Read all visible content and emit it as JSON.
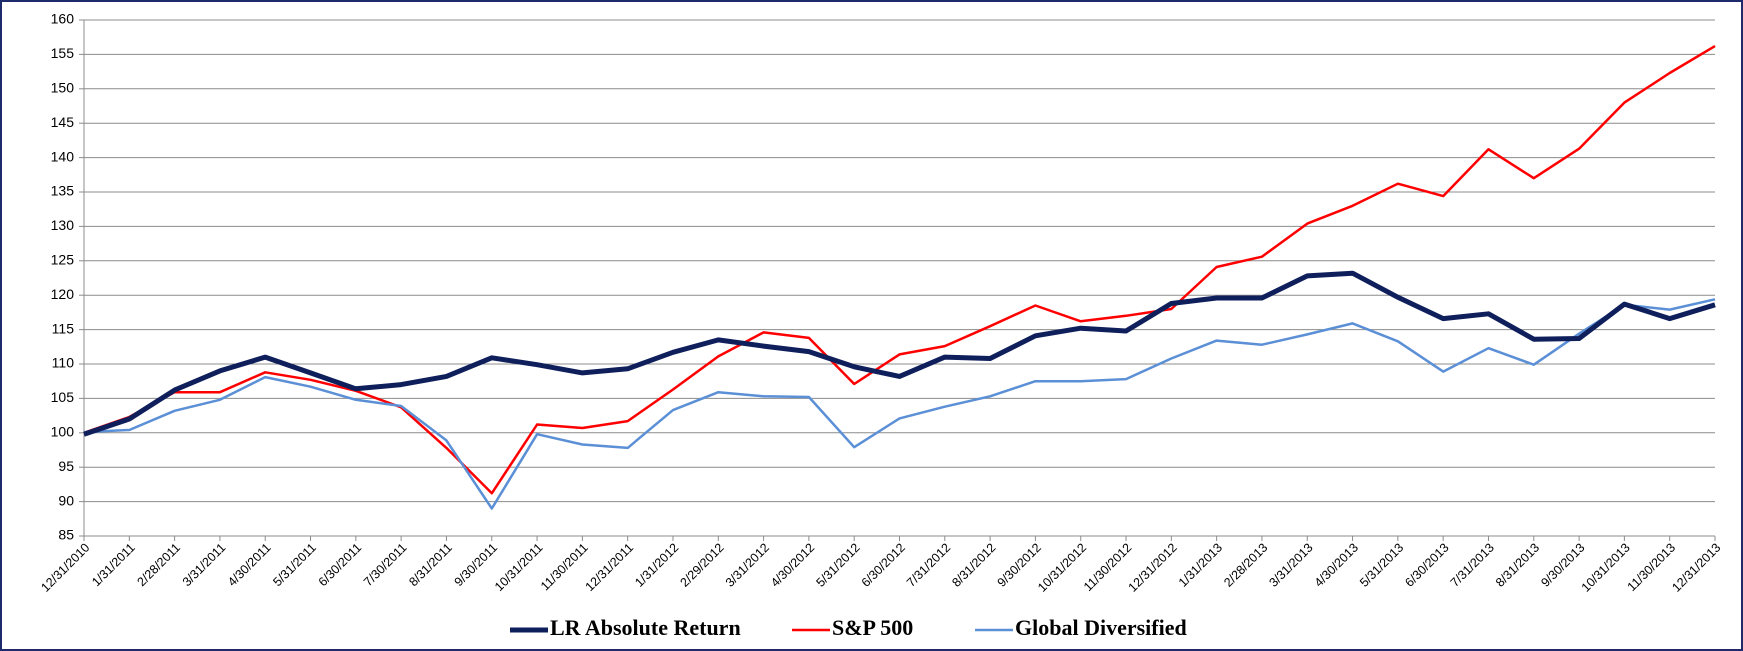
{
  "chart_data": {
    "type": "line",
    "categories": [
      "12/31/2010",
      "1/31/2011",
      "2/28/2011",
      "3/31/2011",
      "4/30/2011",
      "5/31/2011",
      "6/30/2011",
      "7/30/2011",
      "8/31/2011",
      "9/30/2011",
      "10/31/2011",
      "11/30/2011",
      "12/31/2011",
      "1/31/2012",
      "2/29/2012",
      "3/31/2012",
      "4/30/2012",
      "5/31/2012",
      "6/30/2012",
      "7/31/2012",
      "8/31/2012",
      "9/30/2012",
      "10/31/2012",
      "11/30/2012",
      "12/31/2012",
      "1/31/2013",
      "2/28/2013",
      "3/31/2013",
      "4/30/2013",
      "5/31/2013",
      "6/30/2013",
      "7/31/2013",
      "8/31/2013",
      "9/30/2013",
      "10/31/2013",
      "11/30/2013",
      "12/31/2013"
    ],
    "series": [
      {
        "name": "LR Absolute Return",
        "color": "#0f1f5c",
        "values": [
          99.8,
          102,
          106.2,
          109,
          111,
          108.7,
          106.4,
          107,
          108.2,
          110.9,
          109.9,
          108.7,
          109.3,
          111.7,
          113.5,
          112.6,
          111.8,
          109.6,
          108.2,
          111,
          110.8,
          114.1,
          115.2,
          114.8,
          118.8,
          119.6,
          119.6,
          122.8,
          123.2,
          119.7,
          116.6,
          117.3,
          113.6,
          113.7,
          118.7,
          116.6,
          118.6
        ]
      },
      {
        "name": "S&P 500",
        "color": "#ff0000",
        "values": [
          100,
          102.3,
          105.9,
          105.9,
          108.8,
          107.7,
          106.1,
          103.7,
          97.8,
          91.2,
          101.2,
          100.7,
          101.7,
          106.3,
          111.1,
          114.6,
          113.8,
          107.1,
          111.4,
          112.6,
          115.5,
          118.5,
          116.2,
          117,
          118,
          124.1,
          125.6,
          130.4,
          133,
          136.2,
          134.4,
          141.2,
          137,
          141.3,
          148,
          152.3,
          156.2
        ]
      },
      {
        "name": "Global Diversified",
        "color": "#5b8fd6",
        "values": [
          100.1,
          100.4,
          103.2,
          104.8,
          108.1,
          106.7,
          104.8,
          103.9,
          98.9,
          89,
          99.8,
          98.3,
          97.8,
          103.3,
          105.9,
          105.3,
          105.2,
          97.9,
          102.1,
          103.8,
          105.3,
          107.5,
          107.5,
          107.8,
          110.8,
          113.4,
          112.8,
          114.3,
          115.9,
          113.3,
          108.9,
          112.3,
          109.9,
          114.4,
          118.6,
          117.9,
          119.4
        ]
      }
    ],
    "ylim": [
      85,
      160
    ],
    "yticks": [
      85,
      90,
      95,
      100,
      105,
      110,
      115,
      120,
      125,
      130,
      135,
      140,
      145,
      150,
      155,
      160
    ],
    "grid": true
  }
}
